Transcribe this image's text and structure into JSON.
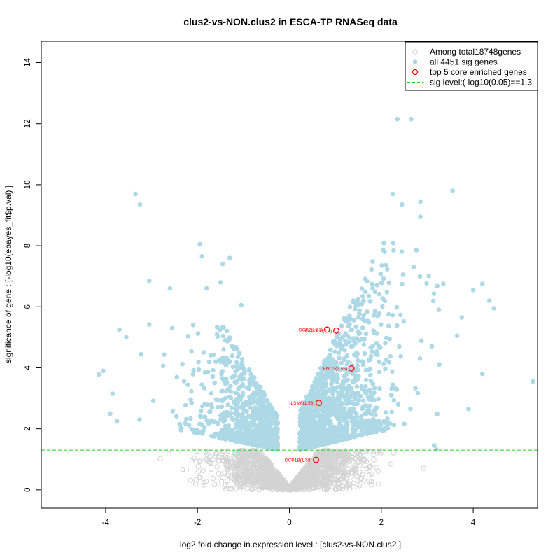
{
  "chart_data": {
    "type": "scatter",
    "title": "clus2-vs-NON.clus2 in ESCA-TP RNASeq data",
    "xlabel": "log2 fold change in expression level : [clus2-vs-NON.clus2 ]",
    "ylabel": "significance of gene : [-log10(ebayes_fit$p.val) ]",
    "xlim": [
      -5.4,
      5.4
    ],
    "ylim": [
      -0.6,
      14.7
    ],
    "x_ticks": [
      -4,
      -2,
      0,
      2,
      4
    ],
    "y_ticks": [
      0,
      2,
      4,
      6,
      8,
      10,
      12,
      14
    ],
    "sig_level": 1.3,
    "colors": {
      "nonsig": "#d3d3d3",
      "sig": "#add8e6",
      "core": "#ff0000",
      "threshold": "#22cc22"
    },
    "legend": {
      "position": "top-right",
      "entries": [
        {
          "label": "Among total18748genes",
          "kind": "nonsig"
        },
        {
          "label": "all 4451 sig genes",
          "kind": "sig"
        },
        {
          "label": "top 5 core enriched genes",
          "kind": "core"
        },
        {
          "label": "sig level:(-log10(0.05)==1.3",
          "kind": "line"
        }
      ]
    },
    "core_genes": [
      {
        "label": "DCP1B(1.58)",
        "x": 0.58,
        "y": 0.98
      },
      {
        "label": "LSM6(1.56)",
        "x": 0.64,
        "y": 2.85
      },
      {
        "label": "ENO3(2.55)",
        "x": 1.35,
        "y": 3.98
      },
      {
        "label": "DCP2(1.63)",
        "x": 0.82,
        "y": 5.25
      },
      {
        "label": "PAPOLB(2.3)",
        "x": 1.02,
        "y": 5.22
      }
    ],
    "sig_points_outliers": [
      [
        -4.15,
        3.78
      ],
      [
        -4.05,
        3.9
      ],
      [
        -3.85,
        3.15
      ],
      [
        -3.9,
        2.5
      ],
      [
        -3.75,
        2.25
      ],
      [
        -3.7,
        5.25
      ],
      [
        -3.55,
        5.0
      ],
      [
        -3.35,
        9.7
      ],
      [
        -3.25,
        9.35
      ],
      [
        -3.05,
        6.85
      ],
      [
        -3.05,
        5.42
      ],
      [
        -2.6,
        6.6
      ],
      [
        -2.55,
        5.3
      ],
      [
        -1.95,
        8.05
      ],
      [
        -1.9,
        7.65
      ],
      [
        -1.8,
        6.6
      ],
      [
        -1.45,
        7.4
      ],
      [
        -1.3,
        7.6
      ],
      [
        -1.5,
        6.8
      ],
      [
        -1.05,
        6.05
      ],
      [
        2.35,
        12.15
      ],
      [
        2.65,
        12.15
      ],
      [
        3.55,
        9.8
      ],
      [
        2.25,
        9.7
      ],
      [
        2.45,
        9.35
      ],
      [
        2.85,
        9.45
      ],
      [
        2.85,
        8.95
      ],
      [
        3.35,
        6.75
      ],
      [
        3.25,
        5.9
      ],
      [
        4.0,
        6.55
      ],
      [
        4.2,
        6.75
      ],
      [
        4.35,
        6.2
      ],
      [
        4.45,
        5.95
      ],
      [
        3.75,
        5.65
      ],
      [
        3.65,
        5.05
      ],
      [
        4.2,
        3.8
      ],
      [
        3.9,
        2.65
      ],
      [
        5.3,
        3.55
      ],
      [
        3.15,
        1.45
      ],
      [
        3.2,
        1.32
      ]
    ]
  }
}
